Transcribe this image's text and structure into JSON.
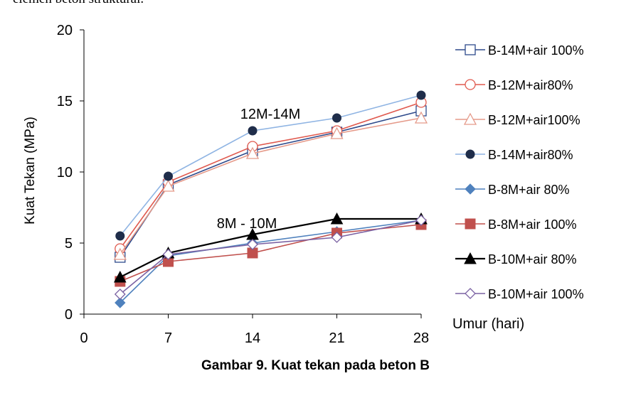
{
  "header_text": "elemen beton struktural.",
  "caption": "Gambar 9. Kuat tekan pada beton B",
  "chart_data": {
    "type": "line",
    "title": "",
    "xlabel": "Umur (hari)",
    "ylabel": "Kuat Tekan (MPa)",
    "xlim": [
      0,
      28
    ],
    "ylim": [
      0,
      20
    ],
    "x_ticks": [
      "0",
      "7",
      "14",
      "21",
      "28"
    ],
    "y_ticks": [
      "0",
      "5",
      "10",
      "15",
      "20"
    ],
    "grid": false,
    "legend_position": "right",
    "annotations": [
      "12M-14M",
      "8M - 10M"
    ],
    "x": [
      3,
      7,
      14,
      21,
      28
    ],
    "series": [
      {
        "name": "B-14M+air 100%",
        "color": "#2e4a8b",
        "marker": "square-open",
        "values": [
          4.0,
          9.1,
          11.5,
          12.8,
          14.3
        ]
      },
      {
        "name": "B-12M+air80%",
        "color": "#e05a4f",
        "marker": "circle-open",
        "values": [
          4.6,
          9.3,
          11.8,
          12.9,
          14.9
        ]
      },
      {
        "name": "B-12M+air100%",
        "color": "#e59a8a",
        "marker": "triangle-open",
        "values": [
          4.2,
          9.0,
          11.3,
          12.7,
          13.8
        ]
      },
      {
        "name": "B-14M+air80%",
        "color": "#8fb4e3",
        "marker": "circle-filled",
        "values": [
          5.5,
          9.7,
          12.9,
          13.8,
          15.4
        ]
      },
      {
        "name": "B-8M+air 80%",
        "color": "#4f81bd",
        "marker": "diamond-filled",
        "values": [
          0.8,
          4.1,
          5.0,
          5.8,
          6.6
        ]
      },
      {
        "name": "B-8M+air 100%",
        "color": "#c0504d",
        "marker": "square-filled",
        "values": [
          2.3,
          3.7,
          4.3,
          5.7,
          6.3
        ]
      },
      {
        "name": "B-10M+air 80%",
        "color": "#000000",
        "marker": "triangle-filled",
        "values": [
          2.6,
          4.3,
          5.6,
          6.7,
          6.7
        ]
      },
      {
        "name": "B-10M+air 100%",
        "color": "#7b62a3",
        "marker": "diamond-open",
        "values": [
          1.4,
          4.2,
          4.9,
          5.4,
          6.6
        ]
      }
    ]
  }
}
